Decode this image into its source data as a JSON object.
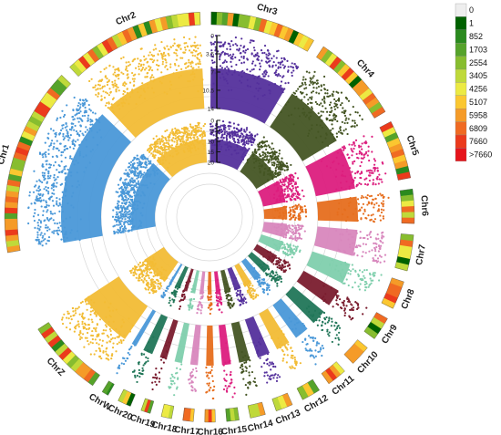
{
  "chart_data": {
    "type": "circular-manhattan",
    "title": "",
    "chromosomes": [
      {
        "name": "Chr1",
        "size": 200
      },
      {
        "name": "Chr2",
        "size": 150
      },
      {
        "name": "Chr3",
        "size": 112
      },
      {
        "name": "Chr4",
        "size": 94
      },
      {
        "name": "Chr5",
        "size": 62
      },
      {
        "name": "Chr6",
        "size": 36
      },
      {
        "name": "Chr7",
        "size": 38
      },
      {
        "name": "Chr8",
        "size": 30
      },
      {
        "name": "Chr9",
        "size": 25
      },
      {
        "name": "Chr10",
        "size": 22
      },
      {
        "name": "Chr11",
        "size": 21
      },
      {
        "name": "Chr12",
        "size": 20
      },
      {
        "name": "Chr13",
        "size": 18
      },
      {
        "name": "Chr14",
        "size": 16
      },
      {
        "name": "Chr15",
        "size": 13
      },
      {
        "name": "Chr16",
        "size": 11
      },
      {
        "name": "Chr17",
        "size": 11
      },
      {
        "name": "Chr18",
        "size": 11
      },
      {
        "name": "Chr19",
        "size": 10
      },
      {
        "name": "Chr20",
        "size": 14
      },
      {
        "name": "ChrW",
        "size": 7
      },
      {
        "name": "ChrZ",
        "size": 82
      }
    ],
    "series": [
      {
        "track": "outer",
        "ylim": [
          0,
          14
        ],
        "ticks": [
          "0",
          "3.5",
          "7",
          "10.5",
          "14"
        ]
      },
      {
        "track": "inner",
        "ylim": [
          0,
          20
        ],
        "ticks": [
          "0",
          "5",
          "10",
          "15",
          "20"
        ]
      }
    ],
    "chromosome_colors": [
      "#4a98d8",
      "#f2bc35",
      "#54309c",
      "#455524",
      "#dc1e7e",
      "#e66e1e",
      "#d887bd",
      "#80cfad",
      "#7a1c2e",
      "#217658",
      "#4a98d8",
      "#f2bc35",
      "#54309c",
      "#455524",
      "#dc1e7e",
      "#e66e1e",
      "#d887bd",
      "#80cfad",
      "#7a1c2e",
      "#217658",
      "#4a98d8",
      "#f2bc35"
    ],
    "legend": {
      "placement": "top-right",
      "entries": [
        {
          "label": "0",
          "color": "#eeeeee"
        },
        {
          "label": "1",
          "color": "#006100"
        },
        {
          "label": "852",
          "color": "#2a8a1e"
        },
        {
          "label": "1703",
          "color": "#55a32a"
        },
        {
          "label": "2554",
          "color": "#87bd2f"
        },
        {
          "label": "3405",
          "color": "#bfd93a"
        },
        {
          "label": "4256",
          "color": "#ecea43"
        },
        {
          "label": "5107",
          "color": "#fbc730"
        },
        {
          "label": "5958",
          "color": "#f59b28"
        },
        {
          "label": "6809",
          "color": "#f06a22"
        },
        {
          "label": "7660",
          "color": "#eb3a1c"
        },
        {
          "label": ">7660",
          "color": "#e6141b"
        }
      ]
    }
  }
}
